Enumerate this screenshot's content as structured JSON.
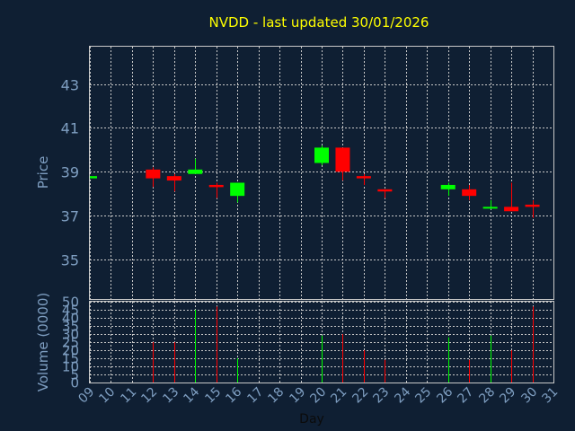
{
  "chart_data": {
    "type": "candlestick",
    "title": "NVDD - last updated 30/01/2026",
    "xlabel": "Day",
    "price_axis": {
      "label": "Price",
      "ylim": [
        33.2,
        44.7
      ],
      "ticks": [
        35,
        37,
        39,
        41,
        43
      ]
    },
    "volume_axis": {
      "label": "Volume (0000)",
      "ylim": [
        0,
        50
      ],
      "ticks": [
        0,
        5,
        10,
        15,
        20,
        25,
        30,
        35,
        40,
        45,
        50
      ]
    },
    "x_ticks": [
      "09",
      "10",
      "11",
      "12",
      "13",
      "14",
      "15",
      "16",
      "17",
      "18",
      "19",
      "20",
      "21",
      "22",
      "23",
      "24",
      "25",
      "26",
      "27",
      "28",
      "29",
      "30",
      "31"
    ],
    "xlim": [
      9,
      31
    ],
    "grid": true,
    "up_color": "#00ff00",
    "down_color": "#ff0000",
    "candles": [
      {
        "day": 9,
        "open": 38.7,
        "high": 38.8,
        "low": 38.7,
        "close": 38.8,
        "volume": 0
      },
      {
        "day": 12,
        "open": 39.1,
        "high": 39.2,
        "low": 38.3,
        "close": 38.7,
        "volume": 25
      },
      {
        "day": 13,
        "open": 38.8,
        "high": 38.9,
        "low": 38.1,
        "close": 38.6,
        "volume": 25
      },
      {
        "day": 14,
        "open": 38.9,
        "high": 39.6,
        "low": 38.9,
        "close": 39.1,
        "volume": 45
      },
      {
        "day": 15,
        "open": 38.4,
        "high": 38.5,
        "low": 37.8,
        "close": 38.3,
        "volume": 47
      },
      {
        "day": 16,
        "open": 37.9,
        "high": 38.5,
        "low": 37.6,
        "close": 38.5,
        "volume": 15
      },
      {
        "day": 20,
        "open": 39.4,
        "high": 40.2,
        "low": 39.3,
        "close": 40.1,
        "volume": 29
      },
      {
        "day": 21,
        "open": 40.1,
        "high": 40.1,
        "low": 38.6,
        "close": 39.0,
        "volume": 30
      },
      {
        "day": 22,
        "open": 38.8,
        "high": 38.9,
        "low": 38.4,
        "close": 38.7,
        "volume": 20
      },
      {
        "day": 23,
        "open": 38.2,
        "high": 38.2,
        "low": 37.8,
        "close": 38.1,
        "volume": 14
      },
      {
        "day": 26,
        "open": 38.2,
        "high": 38.5,
        "low": 37.9,
        "close": 38.4,
        "volume": 28
      },
      {
        "day": 27,
        "open": 38.2,
        "high": 38.4,
        "low": 37.7,
        "close": 37.9,
        "volume": 14
      },
      {
        "day": 28,
        "open": 37.4,
        "high": 37.7,
        "low": 37.3,
        "close": 37.4,
        "volume": 29
      },
      {
        "day": 29,
        "open": 37.4,
        "high": 38.5,
        "low": 37.2,
        "close": 37.2,
        "volume": 20
      },
      {
        "day": 30,
        "open": 37.5,
        "high": 37.7,
        "low": 36.9,
        "close": 37.4,
        "volume": 47
      }
    ]
  }
}
